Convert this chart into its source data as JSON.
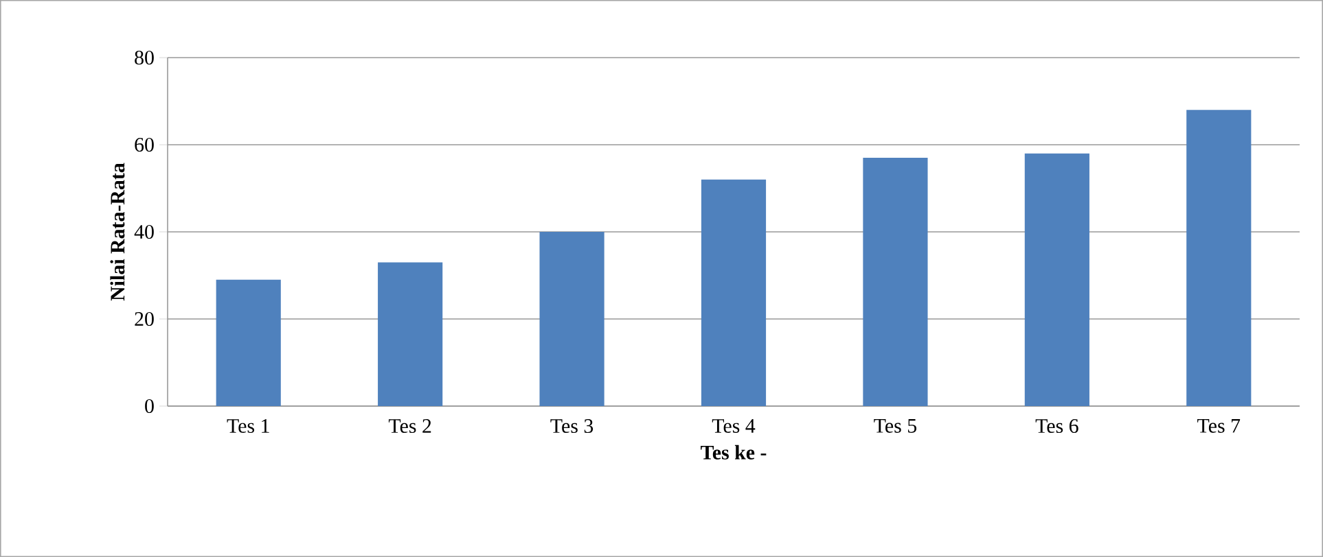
{
  "chart_data": {
    "type": "bar",
    "xlabel": "Tes ke -",
    "ylabel": "Nilai Rata-Rata",
    "categories": [
      "Tes 1",
      "Tes 2",
      "Tes 3",
      "Tes 4",
      "Tes 5",
      "Tes 6",
      "Tes 7"
    ],
    "values": [
      29,
      33,
      40,
      52,
      57,
      58,
      68
    ],
    "color": "#4f81bd",
    "ylim": [
      0,
      80
    ],
    "yticks": [
      0,
      20,
      40,
      60,
      80
    ],
    "grid": "y"
  }
}
